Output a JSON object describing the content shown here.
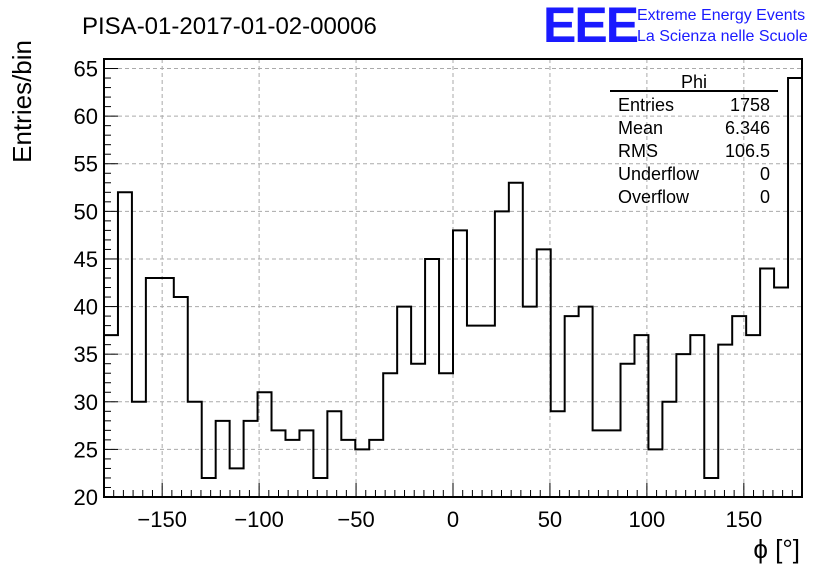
{
  "chart_data": {
    "type": "histogram",
    "title": "PISA-01-2017-01-02-00006",
    "xlabel": "ϕ [°]",
    "ylabel": "Entries/bin",
    "xlim": [
      -180,
      180
    ],
    "ylim": [
      20,
      66
    ],
    "bin_width": 7.2,
    "x_ticks": [
      -150,
      -100,
      -50,
      0,
      50,
      100,
      150
    ],
    "x_tick_labels": [
      "−150",
      "−100",
      "−50",
      "0",
      "50",
      "100",
      "150"
    ],
    "y_ticks": [
      20,
      25,
      30,
      35,
      40,
      45,
      50,
      55,
      60,
      65
    ],
    "y_tick_labels": [
      "20",
      "25",
      "30",
      "35",
      "40",
      "45",
      "50",
      "55",
      "60",
      "65"
    ],
    "grid": true,
    "values": [
      37,
      52,
      30,
      43,
      43,
      41,
      30,
      22,
      28,
      23,
      28,
      31,
      27,
      26,
      27,
      22,
      29,
      26,
      25,
      26,
      33,
      40,
      34,
      45,
      33,
      48,
      38,
      38,
      50,
      53,
      40,
      46,
      29,
      39,
      40,
      27,
      27,
      34,
      37,
      25,
      30,
      35,
      37,
      22,
      36,
      39,
      37,
      44,
      42,
      64
    ]
  },
  "stats_box": {
    "name": "Phi",
    "rows": [
      {
        "label": "Entries",
        "value": "1758"
      },
      {
        "label": "Mean",
        "value": "6.346"
      },
      {
        "label": "RMS",
        "value": "106.5"
      },
      {
        "label": "Underflow",
        "value": "0"
      },
      {
        "label": "Overflow",
        "value": "0"
      }
    ]
  },
  "logo": {
    "mark": "EEE",
    "line1": "Extreme Energy Events",
    "line2": "La Scienza nelle Scuole",
    "color": "#1a1aff"
  }
}
